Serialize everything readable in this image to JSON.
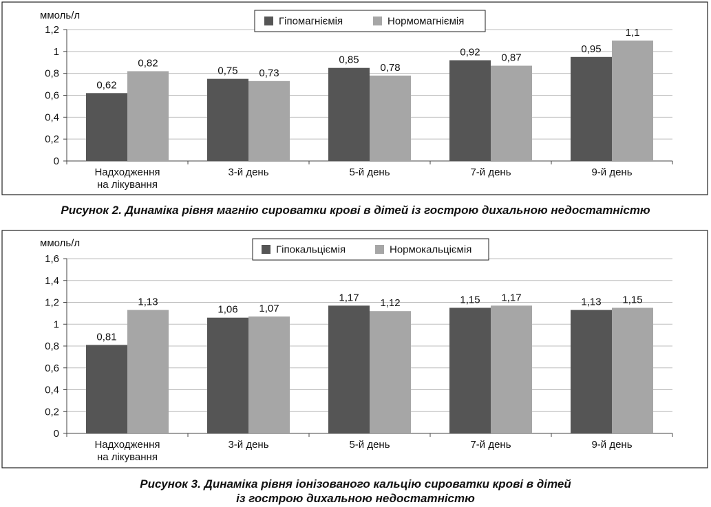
{
  "chart_data": [
    {
      "type": "bar",
      "ylabel": "ммоль/л",
      "ylim": [
        0,
        1.2
      ],
      "yticks": [
        "0",
        "0,2",
        "0,4",
        "0,6",
        "0,8",
        "1",
        "1,2"
      ],
      "ytick_values": [
        0,
        0.2,
        0.4,
        0.6,
        0.8,
        1,
        1.2
      ],
      "categories": [
        [
          "Надходження",
          "на лікування"
        ],
        [
          "3-й день"
        ],
        [
          "5-й день"
        ],
        [
          "7-й день"
        ],
        [
          "9-й день"
        ]
      ],
      "series": [
        {
          "name": "Гіпомагніємія",
          "color": "#555555",
          "values": [
            0.62,
            0.75,
            0.85,
            0.92,
            0.95
          ],
          "labels": [
            "0,62",
            "0,75",
            "0,85",
            "0,92",
            "0,95"
          ]
        },
        {
          "name": "Нормомагніємія",
          "color": "#a6a6a6",
          "values": [
            0.82,
            0.73,
            0.78,
            0.87,
            1.1
          ],
          "labels": [
            "0,82",
            "0,73",
            "0,78",
            "0,87",
            "1,1"
          ]
        }
      ],
      "grid": true,
      "legend_position": "top"
    },
    {
      "type": "bar",
      "ylabel": "ммоль/л",
      "ylim": [
        0,
        1.6
      ],
      "yticks": [
        "0",
        "0,2",
        "0,4",
        "0,6",
        "0,8",
        "1",
        "1,2",
        "1,4",
        "1,6"
      ],
      "ytick_values": [
        0,
        0.2,
        0.4,
        0.6,
        0.8,
        1,
        1.2,
        1.4,
        1.6
      ],
      "categories": [
        [
          "Надходження",
          "на лікування"
        ],
        [
          "3-й день"
        ],
        [
          "5-й день"
        ],
        [
          "7-й день"
        ],
        [
          "9-й день"
        ]
      ],
      "series": [
        {
          "name": "Гіпокальціємія",
          "color": "#555555",
          "values": [
            0.81,
            1.06,
            1.17,
            1.15,
            1.13
          ],
          "labels": [
            "0,81",
            "1,06",
            "1,17",
            "1,15",
            "1,13"
          ]
        },
        {
          "name": "Нормокальціємія",
          "color": "#a6a6a6",
          "values": [
            1.13,
            1.07,
            1.12,
            1.17,
            1.15
          ],
          "labels": [
            "1,13",
            "1,07",
            "1,12",
            "1,17",
            "1,15"
          ]
        }
      ],
      "grid": true,
      "legend_position": "top"
    }
  ],
  "captions": {
    "fig2": [
      "Рисунок 2.  Динаміка рівня магнію сироватки крові в дітей із гострою дихальною недостатністю"
    ],
    "fig3": [
      "Рисунок 3.  Динаміка рівня іонізованого кальцію сироватки крові в дітей",
      "із гострою дихальною недостатністю"
    ]
  }
}
